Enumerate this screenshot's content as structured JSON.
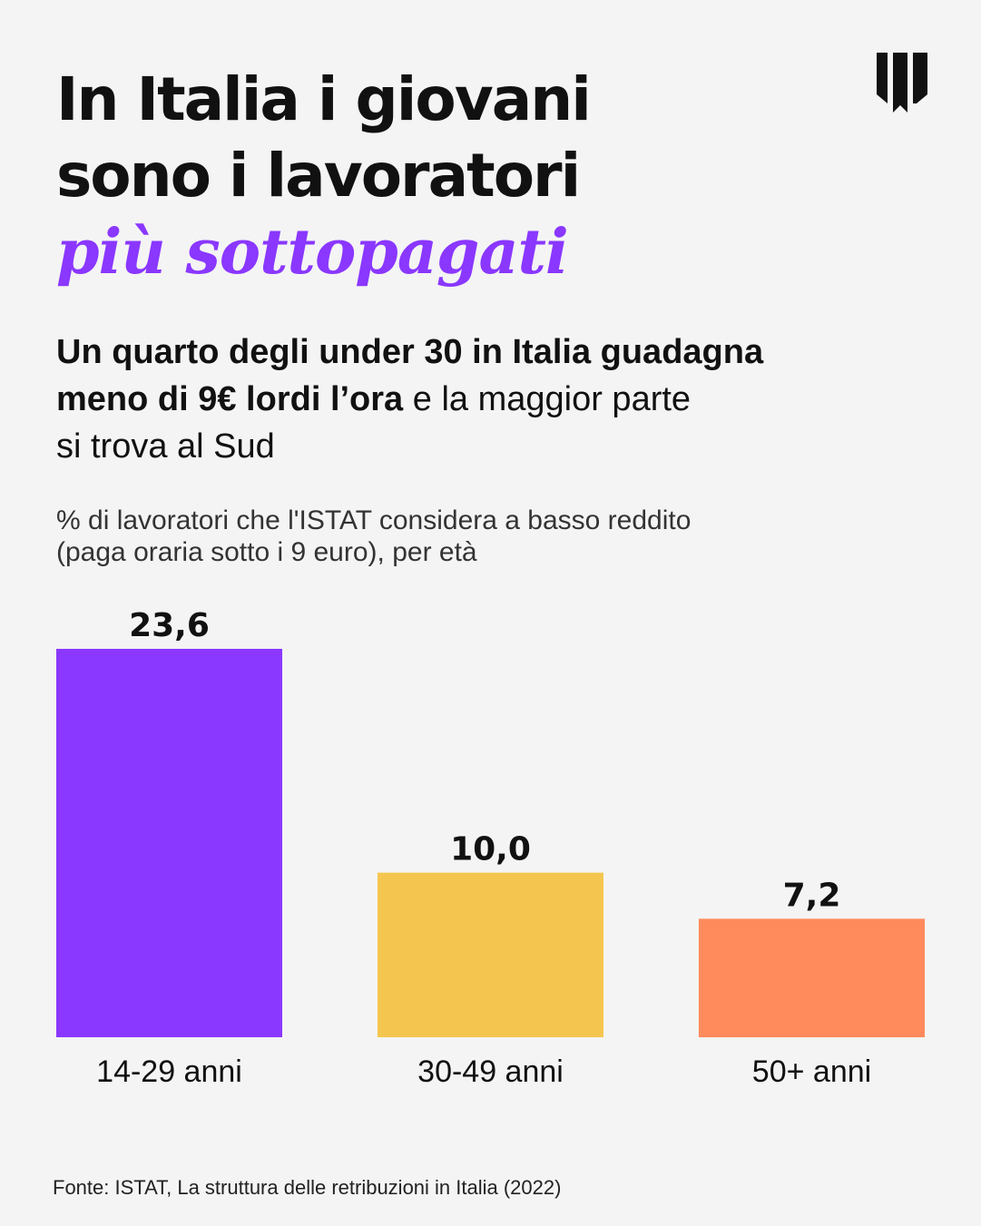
{
  "title": {
    "line1": "In Italia i giovani",
    "line2": "sono i lavoratori",
    "line3": "più sottopagati"
  },
  "subtitle": {
    "line1_bold": "Un quarto degli under 30 in Italia guadagna",
    "line2_bold": "meno di 9€ lordi l’ora",
    "line2_rest": " e la maggior parte",
    "line3": "si trova al Sud"
  },
  "chart_description": {
    "line1": "% di lavoratori che l'ISTAT considera a basso reddito",
    "line2": "(paga oraria sotto i 9 euro), per età"
  },
  "chart_data": {
    "type": "bar",
    "categories": [
      "14-29 anni",
      "30-49 anni",
      "50+ anni"
    ],
    "values": [
      23.6,
      10.0,
      7.2
    ],
    "value_labels": [
      "23,6",
      "10,0",
      "7,2"
    ],
    "colors": [
      "#8a37ff",
      "#f5c64f",
      "#ff8a5c"
    ],
    "ylim": [
      0,
      23.6
    ],
    "title": "% di lavoratori che l'ISTAT considera a basso reddito (paga oraria sotto i 9 euro), per età",
    "xlabel": "",
    "ylabel": "",
    "grid": false
  },
  "source": "Fonte: ISTAT, La struttura delle retribuzioni in Italia (2022)",
  "colors": {
    "accent": "#8a37ff",
    "background": "#f4f4f4",
    "text": "#111111"
  },
  "logo": {
    "icon": "brand-logo-icon"
  }
}
